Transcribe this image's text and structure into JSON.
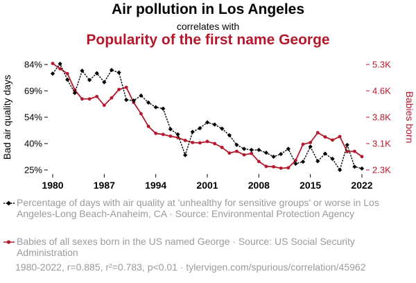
{
  "header": {
    "title": "Air pollution in Los Angeles",
    "connector": "correlates with",
    "title2": "Popularity of the first name George"
  },
  "colors": {
    "series1": "#000000",
    "series2": "#b5172b",
    "muted": "#9a9a9a"
  },
  "chart_data": {
    "type": "line",
    "x_ticks": [
      "1980",
      "1987",
      "1994",
      "2001",
      "2008",
      "2015",
      "2022"
    ],
    "xlim": [
      1980,
      2022
    ],
    "grid": false,
    "legend_placement": "bottom",
    "left_axis": {
      "label": "Bad air quality days",
      "ticks": [
        "84%",
        "69%",
        "54%",
        "40%",
        "25%"
      ],
      "ylim": [
        25,
        84
      ]
    },
    "right_axis": {
      "label": "Babies born",
      "ticks": [
        "5.3K",
        "4.6K",
        "3.8K",
        "3.1K",
        "2.3K"
      ],
      "ylim": [
        2300,
        5300
      ]
    },
    "series": [
      {
        "name": "Percentage of days with air quality at 'unhealthy for sensitive groups' or worse in Los Angeles-Long Beach-Anaheim, CA · Source: Environmental Protection Agency",
        "axis": "left",
        "values": [
          [
            1980,
            78.9
          ],
          [
            1981,
            84.4
          ],
          [
            1982,
            75.5
          ],
          [
            1983,
            68.1
          ],
          [
            1984,
            80.5
          ],
          [
            1985,
            75.3
          ],
          [
            1986,
            79.1
          ],
          [
            1987,
            74.1
          ],
          [
            1988,
            80.9
          ],
          [
            1989,
            79.5
          ],
          [
            1990,
            64.2
          ],
          [
            1991,
            63.8
          ],
          [
            1992,
            66.6
          ],
          [
            1993,
            62.7
          ],
          [
            1994,
            60.1
          ],
          [
            1995,
            59.3
          ],
          [
            1996,
            47.8
          ],
          [
            1997,
            44.9
          ],
          [
            1998,
            33.3
          ],
          [
            1999,
            46.3
          ],
          [
            2000,
            48.4
          ],
          [
            2001,
            51.6
          ],
          [
            2002,
            50.4
          ],
          [
            2003,
            48.1
          ],
          [
            2004,
            44.4
          ],
          [
            2005,
            39.0
          ],
          [
            2006,
            36.8
          ],
          [
            2007,
            36.2
          ],
          [
            2008,
            36.2
          ],
          [
            2009,
            34.6
          ],
          [
            2010,
            32.4
          ],
          [
            2011,
            33.9
          ],
          [
            2012,
            36.8
          ],
          [
            2013,
            28.5
          ],
          [
            2014,
            29.6
          ],
          [
            2015,
            38.0
          ],
          [
            2016,
            29.9
          ],
          [
            2017,
            34.1
          ],
          [
            2018,
            31.2
          ],
          [
            2019,
            25.0
          ],
          [
            2020,
            39.0
          ],
          [
            2021,
            26.8
          ],
          [
            2022,
            25.8
          ]
        ]
      },
      {
        "name": "Babies of all sexes born in the US named George · Source: US Social Security Administration",
        "axis": "right",
        "values": [
          [
            1980,
            5330
          ],
          [
            1981,
            5180
          ],
          [
            1982,
            5040
          ],
          [
            1983,
            4580
          ],
          [
            1984,
            4320
          ],
          [
            1985,
            4320
          ],
          [
            1986,
            4390
          ],
          [
            1987,
            4140
          ],
          [
            1988,
            4350
          ],
          [
            1989,
            4590
          ],
          [
            1990,
            4650
          ],
          [
            1991,
            4220
          ],
          [
            1992,
            3900
          ],
          [
            1993,
            3540
          ],
          [
            1994,
            3340
          ],
          [
            1995,
            3310
          ],
          [
            1996,
            3260
          ],
          [
            1997,
            3220
          ],
          [
            1998,
            3140
          ],
          [
            1999,
            3080
          ],
          [
            2000,
            3070
          ],
          [
            2001,
            3110
          ],
          [
            2002,
            3050
          ],
          [
            2003,
            2940
          ],
          [
            2004,
            2780
          ],
          [
            2005,
            2830
          ],
          [
            2006,
            2730
          ],
          [
            2007,
            2770
          ],
          [
            2008,
            2540
          ],
          [
            2009,
            2400
          ],
          [
            2010,
            2390
          ],
          [
            2011,
            2350
          ],
          [
            2012,
            2360
          ],
          [
            2013,
            2570
          ],
          [
            2014,
            3030
          ],
          [
            2015,
            3080
          ],
          [
            2016,
            3360
          ],
          [
            2017,
            3240
          ],
          [
            2018,
            3150
          ],
          [
            2019,
            3250
          ],
          [
            2020,
            2820
          ],
          [
            2021,
            2830
          ],
          [
            2022,
            2680
          ]
        ]
      }
    ]
  },
  "legend": [
    {
      "text": "Percentage of days with air quality at 'unhealthy for sensitive groups' or worse in Los Angeles-Long Beach-Anaheim, CA · Source: Environmental Protection Agency"
    },
    {
      "text": "Babies of all sexes born in the US named George · Source: US Social Security Administration"
    }
  ],
  "footer": "1980-2022, r=0.885, r²=0.783, p<0.01 · tylervigen.com/spurious/correlation/45962"
}
